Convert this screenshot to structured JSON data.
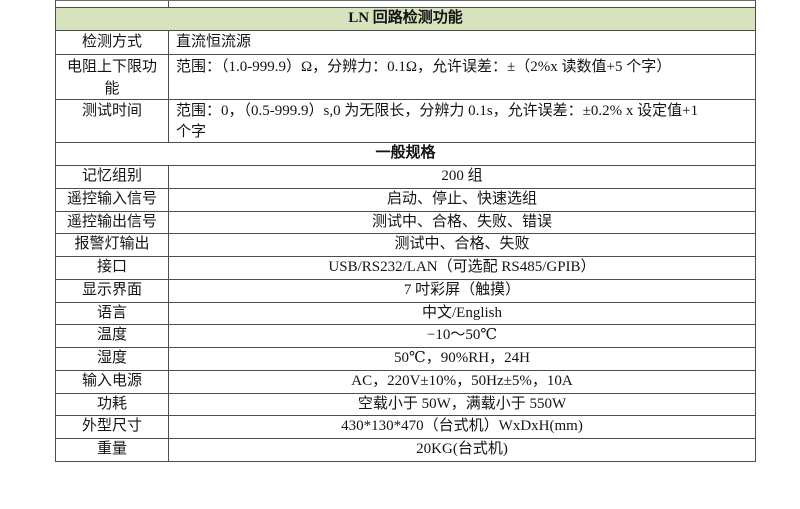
{
  "section_ln": {
    "title": "LN 回路检测功能"
  },
  "ln_rows": [
    {
      "label": "检测方式",
      "value": "直流恒流源"
    },
    {
      "label": "电阻上下限功能",
      "value": "范围：（1.0-999.9）Ω，分辨力：0.1Ω，允许误差：±（2%x 读数值+5 个字）"
    },
    {
      "label": "测试时间",
      "line1": "范围：0，（0.5-999.9）s,0 为无限长，分辨力 0.1s，允许误差：±0.2% x 设定值+1",
      "line2": "个字"
    }
  ],
  "section_general": {
    "title": "一般规格"
  },
  "general_rows": [
    {
      "label": "记忆组别",
      "value": "200 组"
    },
    {
      "label": "遥控输入信号",
      "value": "启动、停止、快速选组"
    },
    {
      "label": "遥控输出信号",
      "value": "测试中、合格、失败、错误"
    },
    {
      "label": "报警灯输出",
      "value": "测试中、合格、失败"
    },
    {
      "label": "接口",
      "value": "USB/RS232/LAN（可选配 RS485/GPIB）"
    },
    {
      "label": "显示界面",
      "value": "7 吋彩屏（触摸）"
    },
    {
      "label": "语言",
      "value": "中文/English"
    },
    {
      "label": "温度",
      "value": "−10～50℃"
    },
    {
      "label": "湿度",
      "value": "50℃，90%RH，24H"
    },
    {
      "label": "输入电源",
      "value": "AC，220V±10%，50Hz±5%，10A"
    },
    {
      "label": "功耗",
      "value": "空载小于 50W，满载小于 550W"
    },
    {
      "label": "外型尺寸",
      "value": "430*130*470（台式机）WxDxH(mm)"
    },
    {
      "label": "重量",
      "value": "20KG(台式机)"
    }
  ],
  "colors": {
    "header_bg": "#d6e3bc",
    "border": "#4d4d4d",
    "text": "#141414"
  }
}
